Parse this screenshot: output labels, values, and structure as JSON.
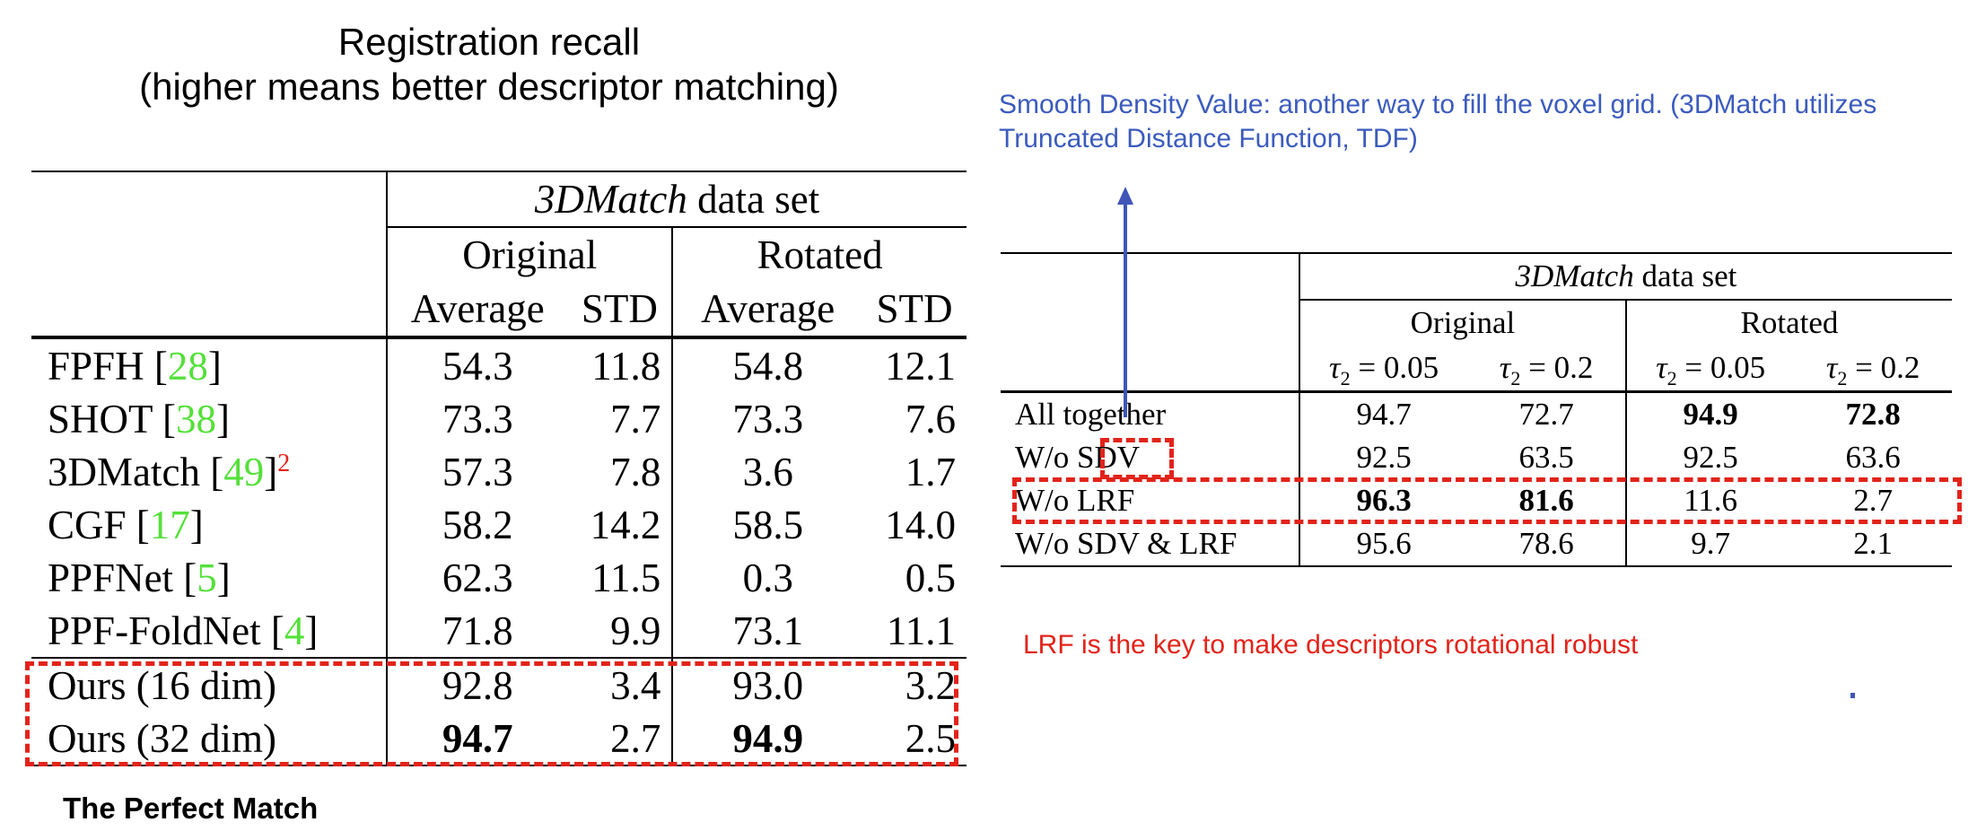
{
  "title_line1": "Registration recall",
  "title_line2": "(higher means better descriptor matching)",
  "caption": "The Perfect Match",
  "sdv_note": "Smooth Density Value: another way to fill the voxel grid. (3DMatch utilizes Truncated Distance Function, TDF)",
  "lrf_note": "LRF is the key to make descriptors rotational robust",
  "table1": {
    "dataset_name": "3DMatch",
    "dataset_suffix": " data set",
    "group_original": "Original",
    "group_rotated": "Rotated",
    "col_average": "Average",
    "col_std": "STD",
    "rows": [
      {
        "name": "FPFH [",
        "cite": "28",
        "close": "]",
        "sup": "",
        "o_avg": "54.3",
        "o_std": "11.8",
        "r_avg": "54.8",
        "r_std": "12.1"
      },
      {
        "name": "SHOT [",
        "cite": "38",
        "close": "]",
        "sup": "",
        "o_avg": "73.3",
        "o_std": "7.7",
        "r_avg": "73.3",
        "r_std": "7.6"
      },
      {
        "name": "3DMatch [",
        "cite": "49",
        "close": "]",
        "sup": "2",
        "o_avg": "57.3",
        "o_std": "7.8",
        "r_avg": "3.6",
        "r_std": "1.7"
      },
      {
        "name": "CGF [",
        "cite": "17",
        "close": "]",
        "sup": "",
        "o_avg": "58.2",
        "o_std": "14.2",
        "r_avg": "58.5",
        "r_std": "14.0"
      },
      {
        "name": "PPFNet [",
        "cite": "5",
        "close": "]",
        "sup": "",
        "o_avg": "62.3",
        "o_std": "11.5",
        "r_avg": "0.3",
        "r_std": "0.5"
      },
      {
        "name": "PPF-FoldNet [",
        "cite": "4",
        "close": "]",
        "sup": "",
        "o_avg": "71.8",
        "o_std": "9.9",
        "r_avg": "73.1",
        "r_std": "11.1"
      }
    ],
    "ours": [
      {
        "name": "Ours (16 dim)",
        "o_avg": "92.8",
        "o_std": "3.4",
        "r_avg": "93.0",
        "r_std": "3.2"
      },
      {
        "name": "Ours (32 dim)",
        "o_avg": "94.7",
        "o_std": "2.7",
        "r_avg": "94.9",
        "r_std": "2.5"
      }
    ]
  },
  "table2": {
    "dataset_name": "3DMatch",
    "dataset_suffix": " data set",
    "group_original": "Original",
    "group_rotated": "Rotated",
    "tau_symbol": "τ",
    "tau_sub": "2",
    "tau_a": " = 0.05",
    "tau_b": " = 0.2",
    "rows": [
      {
        "name": "All together",
        "o_a": "94.7",
        "o_b": "72.7",
        "r_a": "94.9",
        "r_b": "72.8"
      },
      {
        "name": "W/o SDV",
        "o_a": "92.5",
        "o_b": "63.5",
        "r_a": "92.5",
        "r_b": "63.6"
      },
      {
        "name": "W/o LRF",
        "o_a": "96.3",
        "o_b": "81.6",
        "r_a": "11.6",
        "r_b": "2.7"
      },
      {
        "name": "W/o SDV & LRF",
        "o_a": "95.6",
        "o_b": "78.6",
        "r_a": "9.7",
        "r_b": "2.1"
      }
    ]
  }
}
